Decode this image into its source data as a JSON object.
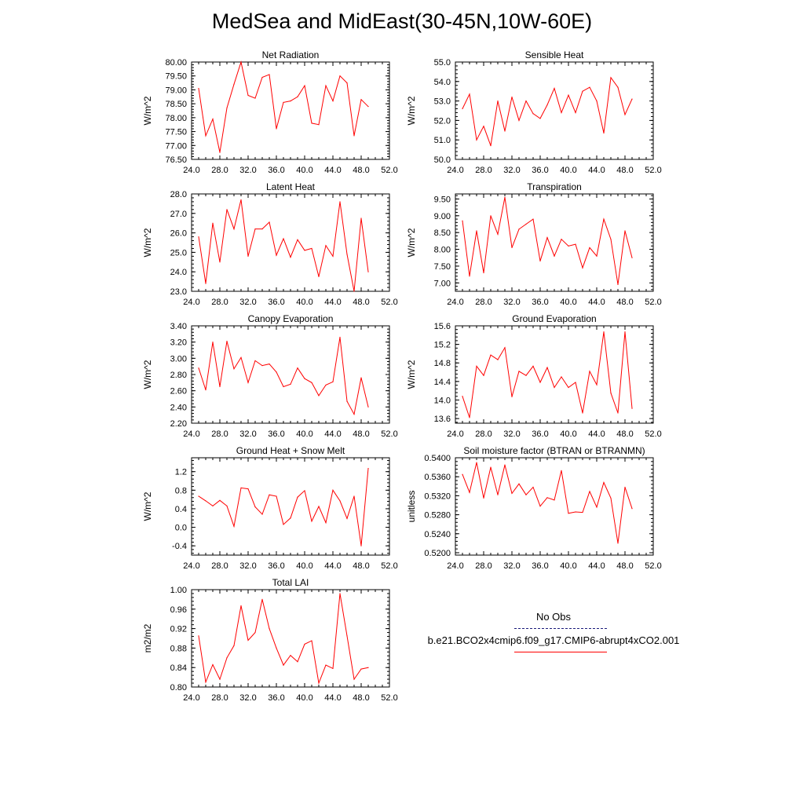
{
  "title": "MedSea and MidEast(30-45N,10W-60E)",
  "legend": {
    "entries": [
      {
        "label": "No Obs",
        "color": "#1a1a7a",
        "style": "dashed"
      },
      {
        "label": "b.e21.BCO2x4cmip6.f09_g17.CMIP6-abrupt4xCO2.001",
        "color": "#ff0000",
        "style": "solid"
      }
    ]
  },
  "chart_data": [
    {
      "type": "line",
      "title": "Net Radiation",
      "ylabel": "W/m^2",
      "xlim": [
        24,
        52
      ],
      "ylim": [
        76.5,
        80.0
      ],
      "xticks": [
        "24.0",
        "28.0",
        "32.0",
        "36.0",
        "40.0",
        "44.0",
        "48.0",
        "52.0"
      ],
      "yticks": [
        "76.50",
        "77.00",
        "77.50",
        "78.00",
        "78.50",
        "79.00",
        "79.50",
        "80.00"
      ],
      "x": [
        25,
        26,
        27,
        28,
        29,
        30,
        31,
        32,
        33,
        34,
        35,
        36,
        37,
        38,
        39,
        40,
        41,
        42,
        43,
        44,
        45,
        46,
        47,
        48,
        49
      ],
      "series": [
        {
          "name": "b.e21.BCO2x4cmip6.f09_g17.CMIP6-abrupt4xCO2.001",
          "color": "#ff0000",
          "values": [
            79.05,
            77.35,
            77.95,
            76.75,
            78.35,
            79.2,
            80.0,
            78.8,
            78.7,
            79.45,
            79.55,
            77.6,
            78.55,
            78.6,
            78.75,
            79.15,
            77.8,
            77.75,
            79.15,
            78.6,
            79.5,
            79.25,
            77.35,
            78.65,
            78.4
          ]
        }
      ]
    },
    {
      "type": "line",
      "title": "Sensible Heat",
      "ylabel": "W/m^2",
      "xlim": [
        24,
        52
      ],
      "ylim": [
        50.0,
        55.0
      ],
      "xticks": [
        "24.0",
        "28.0",
        "32.0",
        "36.0",
        "40.0",
        "44.0",
        "48.0",
        "52.0"
      ],
      "yticks": [
        "50.0",
        "51.0",
        "52.0",
        "53.0",
        "54.0",
        "55.0"
      ],
      "x": [
        25,
        26,
        27,
        28,
        29,
        30,
        31,
        32,
        33,
        34,
        35,
        36,
        37,
        38,
        39,
        40,
        41,
        42,
        43,
        44,
        45,
        46,
        47,
        48,
        49
      ],
      "series": [
        {
          "name": "b.e21.BCO2x4cmip6.f09_g17.CMIP6-abrupt4xCO2.001",
          "color": "#ff0000",
          "values": [
            52.6,
            53.35,
            51.0,
            51.7,
            50.7,
            53.0,
            51.45,
            53.2,
            52.0,
            53.0,
            52.35,
            52.1,
            52.8,
            53.65,
            52.4,
            53.3,
            52.4,
            53.5,
            53.7,
            53.0,
            51.35,
            54.2,
            53.7,
            52.3,
            53.1
          ]
        }
      ]
    },
    {
      "type": "line",
      "title": "Latent Heat",
      "ylabel": "W/m^2",
      "xlim": [
        24,
        52
      ],
      "ylim": [
        23.0,
        28.0
      ],
      "xticks": [
        "24.0",
        "28.0",
        "32.0",
        "36.0",
        "40.0",
        "44.0",
        "48.0",
        "52.0"
      ],
      "yticks": [
        "23.0",
        "24.0",
        "25.0",
        "26.0",
        "27.0",
        "28.0"
      ],
      "x": [
        25,
        26,
        27,
        28,
        29,
        30,
        31,
        32,
        33,
        34,
        35,
        36,
        37,
        38,
        39,
        40,
        41,
        42,
        43,
        44,
        45,
        46,
        47,
        48,
        49
      ],
      "series": [
        {
          "name": "b.e21.BCO2x4cmip6.f09_g17.CMIP6-abrupt4xCO2.001",
          "color": "#ff0000",
          "values": [
            25.8,
            23.4,
            26.5,
            24.5,
            27.2,
            26.2,
            27.7,
            24.8,
            26.2,
            26.2,
            26.55,
            24.85,
            25.7,
            24.75,
            25.65,
            25.1,
            25.2,
            23.75,
            25.35,
            24.8,
            27.6,
            24.9,
            23.0,
            26.75,
            24.0
          ]
        }
      ]
    },
    {
      "type": "line",
      "title": "Transpiration",
      "ylabel": "W/m^2",
      "xlim": [
        24,
        52
      ],
      "ylim": [
        6.75,
        9.65
      ],
      "xticks": [
        "24.0",
        "28.0",
        "32.0",
        "36.0",
        "40.0",
        "44.0",
        "48.0",
        "52.0"
      ],
      "yticks": [
        "7.00",
        "7.50",
        "8.00",
        "8.50",
        "9.00",
        "9.50"
      ],
      "x": [
        25,
        26,
        27,
        28,
        29,
        30,
        31,
        32,
        33,
        34,
        35,
        36,
        37,
        38,
        39,
        40,
        41,
        42,
        43,
        44,
        45,
        46,
        47,
        48,
        49
      ],
      "series": [
        {
          "name": "b.e21.BCO2x4cmip6.f09_g17.CMIP6-abrupt4xCO2.001",
          "color": "#ff0000",
          "values": [
            8.85,
            7.2,
            8.55,
            7.3,
            9.0,
            8.45,
            9.55,
            8.05,
            8.6,
            8.75,
            8.9,
            7.65,
            8.35,
            7.8,
            8.3,
            8.1,
            8.15,
            7.45,
            8.05,
            7.8,
            8.9,
            8.3,
            6.95,
            8.55,
            7.75
          ]
        }
      ]
    },
    {
      "type": "line",
      "title": "Canopy Evaporation",
      "ylabel": "W/m^2",
      "xlim": [
        24,
        52
      ],
      "ylim": [
        2.2,
        3.4
      ],
      "xticks": [
        "24.0",
        "28.0",
        "32.0",
        "36.0",
        "40.0",
        "44.0",
        "48.0",
        "52.0"
      ],
      "yticks": [
        "2.20",
        "2.40",
        "2.60",
        "2.80",
        "3.00",
        "3.20",
        "3.40"
      ],
      "x": [
        25,
        26,
        27,
        28,
        29,
        30,
        31,
        32,
        33,
        34,
        35,
        36,
        37,
        38,
        39,
        40,
        41,
        42,
        43,
        44,
        45,
        46,
        47,
        48,
        49
      ],
      "series": [
        {
          "name": "b.e21.BCO2x4cmip6.f09_g17.CMIP6-abrupt4xCO2.001",
          "color": "#ff0000",
          "values": [
            2.88,
            2.61,
            3.2,
            2.65,
            3.21,
            2.87,
            3.01,
            2.7,
            2.97,
            2.91,
            2.93,
            2.83,
            2.65,
            2.68,
            2.88,
            2.75,
            2.7,
            2.54,
            2.67,
            2.71,
            3.26,
            2.47,
            2.31,
            2.76,
            2.4
          ]
        }
      ]
    },
    {
      "type": "line",
      "title": "Ground Evaporation",
      "ylabel": "W/m^2",
      "xlim": [
        24,
        52
      ],
      "ylim": [
        13.5,
        15.6
      ],
      "xticks": [
        "24.0",
        "28.0",
        "32.0",
        "36.0",
        "40.0",
        "44.0",
        "48.0",
        "52.0"
      ],
      "yticks": [
        "13.6",
        "14.0",
        "14.4",
        "14.8",
        "15.2",
        "15.6"
      ],
      "x": [
        25,
        26,
        27,
        28,
        29,
        30,
        31,
        32,
        33,
        34,
        35,
        36,
        37,
        38,
        39,
        40,
        41,
        42,
        43,
        44,
        45,
        46,
        47,
        48,
        49
      ],
      "series": [
        {
          "name": "b.e21.BCO2x4cmip6.f09_g17.CMIP6-abrupt4xCO2.001",
          "color": "#ff0000",
          "values": [
            14.08,
            13.62,
            14.73,
            14.53,
            14.97,
            14.87,
            15.13,
            14.07,
            14.62,
            14.53,
            14.73,
            14.38,
            14.7,
            14.27,
            14.5,
            14.27,
            14.38,
            13.72,
            14.62,
            14.33,
            15.47,
            14.15,
            13.72,
            15.47,
            13.82
          ]
        }
      ]
    },
    {
      "type": "line",
      "title": "Ground Heat + Snow Melt",
      "ylabel": "W/m^2",
      "xlim": [
        24,
        52
      ],
      "ylim": [
        -0.6,
        1.5
      ],
      "xticks": [
        "24.0",
        "28.0",
        "32.0",
        "36.0",
        "40.0",
        "44.0",
        "48.0",
        "52.0"
      ],
      "yticks": [
        "-0.4",
        "0.0",
        "0.4",
        "0.8",
        "1.2"
      ],
      "x": [
        25,
        26,
        27,
        28,
        29,
        30,
        31,
        32,
        33,
        34,
        35,
        36,
        37,
        38,
        39,
        40,
        41,
        42,
        43,
        44,
        45,
        46,
        47,
        48,
        49
      ],
      "series": [
        {
          "name": "b.e21.BCO2x4cmip6.f09_g17.CMIP6-abrupt4xCO2.001",
          "color": "#ff0000",
          "values": [
            0.67,
            0.57,
            0.46,
            0.58,
            0.46,
            0.02,
            0.85,
            0.83,
            0.44,
            0.28,
            0.7,
            0.67,
            0.06,
            0.2,
            0.65,
            0.79,
            0.13,
            0.45,
            0.1,
            0.8,
            0.57,
            0.19,
            0.67,
            -0.4,
            1.27
          ]
        }
      ]
    },
    {
      "type": "line",
      "title": "Soil moisture factor (BTRAN or BTRANMN)",
      "ylabel": "unitless",
      "xlim": [
        24,
        52
      ],
      "ylim": [
        0.5195,
        0.54
      ],
      "xticks": [
        "24.0",
        "28.0",
        "32.0",
        "36.0",
        "40.0",
        "44.0",
        "48.0",
        "52.0"
      ],
      "yticks": [
        "0.5200",
        "0.5240",
        "0.5280",
        "0.5320",
        "0.5360",
        "0.5400"
      ],
      "x": [
        25,
        26,
        27,
        28,
        29,
        30,
        31,
        32,
        33,
        34,
        35,
        36,
        37,
        38,
        39,
        40,
        41,
        42,
        43,
        44,
        45,
        46,
        47,
        48,
        49
      ],
      "series": [
        {
          "name": "b.e21.BCO2x4cmip6.f09_g17.CMIP6-abrupt4xCO2.001",
          "color": "#ff0000",
          "values": [
            0.5365,
            0.5327,
            0.539,
            0.5315,
            0.538,
            0.5322,
            0.5385,
            0.5325,
            0.5345,
            0.5322,
            0.5338,
            0.5298,
            0.5316,
            0.5311,
            0.5373,
            0.5283,
            0.5286,
            0.5285,
            0.5329,
            0.5296,
            0.5348,
            0.5315,
            0.522,
            0.5338,
            0.5293
          ]
        }
      ]
    },
    {
      "type": "line",
      "title": "Total LAI",
      "ylabel": "m2/m2",
      "xlim": [
        24,
        52
      ],
      "ylim": [
        0.8,
        1.0
      ],
      "xticks": [
        "24.0",
        "28.0",
        "32.0",
        "36.0",
        "40.0",
        "44.0",
        "48.0",
        "52.0"
      ],
      "yticks": [
        "0.80",
        "0.84",
        "0.88",
        "0.92",
        "0.96",
        "1.00"
      ],
      "x": [
        25,
        26,
        27,
        28,
        29,
        30,
        31,
        32,
        33,
        34,
        35,
        36,
        37,
        38,
        39,
        40,
        41,
        42,
        43,
        44,
        45,
        46,
        47,
        48,
        49
      ],
      "series": [
        {
          "name": "b.e21.BCO2x4cmip6.f09_g17.CMIP6-abrupt4xCO2.001",
          "color": "#ff0000",
          "values": [
            0.905,
            0.81,
            0.846,
            0.816,
            0.86,
            0.885,
            0.967,
            0.896,
            0.912,
            0.98,
            0.92,
            0.88,
            0.845,
            0.865,
            0.852,
            0.888,
            0.895,
            0.808,
            0.845,
            0.838,
            0.992,
            0.905,
            0.816,
            0.837,
            0.84
          ]
        }
      ]
    }
  ]
}
